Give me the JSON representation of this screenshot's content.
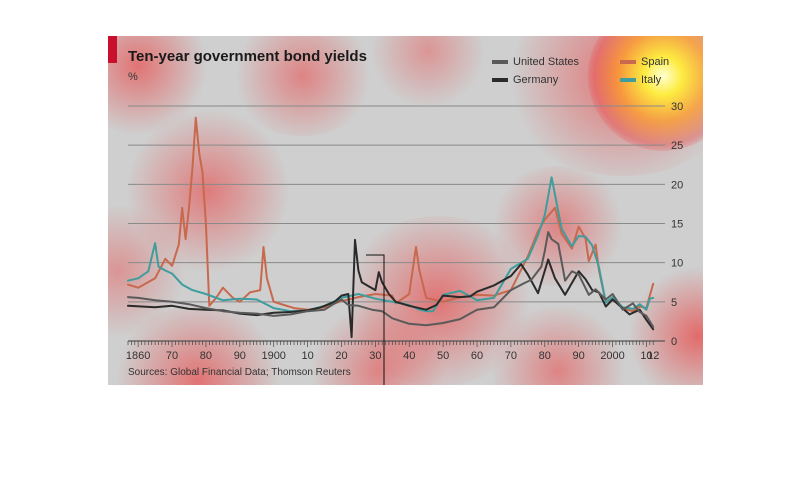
{
  "colors": {
    "panel": "#cfcfcf",
    "accent": "#c8102e",
    "united_states": "#5a5a5a",
    "germany": "#2a2a2a",
    "spain": "#c8684d",
    "italy": "#3e9d9d"
  },
  "chart_data": {
    "type": "line",
    "title": "Ten-year government bond yields",
    "ylabel": "%",
    "xlim": [
      1857,
      2014
    ],
    "ylim": [
      0,
      30
    ],
    "y_ticks": [
      0,
      5,
      10,
      15,
      20,
      25,
      30
    ],
    "x_ticks": [
      {
        "value": 1860,
        "label": "1860"
      },
      {
        "value": 1870,
        "label": "70"
      },
      {
        "value": 1880,
        "label": "80"
      },
      {
        "value": 1890,
        "label": "90"
      },
      {
        "value": 1900,
        "label": "1900"
      },
      {
        "value": 1910,
        "label": "10"
      },
      {
        "value": 1920,
        "label": "20"
      },
      {
        "value": 1930,
        "label": "30"
      },
      {
        "value": 1940,
        "label": "40"
      },
      {
        "value": 1950,
        "label": "50"
      },
      {
        "value": 1960,
        "label": "60"
      },
      {
        "value": 1970,
        "label": "70"
      },
      {
        "value": 1980,
        "label": "80"
      },
      {
        "value": 1990,
        "label": "90"
      },
      {
        "value": 2000,
        "label": "2000"
      },
      {
        "value": 2010,
        "label": "10"
      },
      {
        "value": 2012,
        "label": "12"
      }
    ],
    "grid": true,
    "legend_position": "top-right",
    "source": "Sources: Global Financial Data; Thomson Reuters",
    "series": [
      {
        "name": "United States",
        "color": "#5a5a5a",
        "points": [
          [
            1857,
            5.6
          ],
          [
            1860,
            5.5
          ],
          [
            1865,
            5.2
          ],
          [
            1870,
            5.0
          ],
          [
            1875,
            4.7
          ],
          [
            1880,
            4.2
          ],
          [
            1885,
            3.8
          ],
          [
            1890,
            3.6
          ],
          [
            1895,
            3.5
          ],
          [
            1900,
            3.2
          ],
          [
            1905,
            3.4
          ],
          [
            1910,
            3.8
          ],
          [
            1915,
            4.0
          ],
          [
            1918,
            4.8
          ],
          [
            1920,
            5.3
          ],
          [
            1922,
            4.6
          ],
          [
            1925,
            4.5
          ],
          [
            1929,
            4.0
          ],
          [
            1932,
            3.8
          ],
          [
            1935,
            2.9
          ],
          [
            1940,
            2.2
          ],
          [
            1945,
            2.0
          ],
          [
            1950,
            2.3
          ],
          [
            1955,
            2.8
          ],
          [
            1960,
            4.0
          ],
          [
            1965,
            4.3
          ],
          [
            1970,
            6.5
          ],
          [
            1974,
            7.4
          ],
          [
            1976,
            7.8
          ],
          [
            1979,
            9.5
          ],
          [
            1980,
            11.5
          ],
          [
            1981,
            13.9
          ],
          [
            1982,
            13.0
          ],
          [
            1984,
            12.4
          ],
          [
            1986,
            7.7
          ],
          [
            1988,
            8.9
          ],
          [
            1990,
            8.5
          ],
          [
            1993,
            5.9
          ],
          [
            1995,
            6.6
          ],
          [
            1998,
            5.3
          ],
          [
            2000,
            6.0
          ],
          [
            2003,
            4.0
          ],
          [
            2006,
            4.8
          ],
          [
            2008,
            3.7
          ],
          [
            2010,
            3.2
          ],
          [
            2012,
            1.8
          ]
        ]
      },
      {
        "name": "Germany",
        "color": "#2a2a2a",
        "points": [
          [
            1857,
            4.5
          ],
          [
            1865,
            4.3
          ],
          [
            1870,
            4.5
          ],
          [
            1875,
            4.1
          ],
          [
            1880,
            4.0
          ],
          [
            1885,
            3.9
          ],
          [
            1890,
            3.5
          ],
          [
            1895,
            3.3
          ],
          [
            1900,
            3.6
          ],
          [
            1905,
            3.7
          ],
          [
            1910,
            3.9
          ],
          [
            1914,
            4.3
          ],
          [
            1918,
            5.0
          ],
          [
            1920,
            5.8
          ],
          [
            1922,
            6.0
          ],
          [
            1923,
            0.5
          ],
          [
            1924,
            12.9
          ],
          [
            1925,
            9.0
          ],
          [
            1926,
            7.5
          ],
          [
            1928,
            7.0
          ],
          [
            1930,
            6.5
          ],
          [
            1931,
            8.8
          ],
          [
            1932,
            7.5
          ],
          [
            1934,
            6.0
          ],
          [
            1936,
            5.0
          ],
          [
            1940,
            4.5
          ],
          [
            1945,
            4.0
          ],
          [
            1948,
            4.6
          ],
          [
            1950,
            5.8
          ],
          [
            1955,
            5.6
          ],
          [
            1958,
            5.7
          ],
          [
            1960,
            6.3
          ],
          [
            1965,
            7.1
          ],
          [
            1970,
            8.3
          ],
          [
            1973,
            9.8
          ],
          [
            1975,
            8.5
          ],
          [
            1978,
            6.1
          ],
          [
            1981,
            10.4
          ],
          [
            1983,
            8.0
          ],
          [
            1986,
            5.9
          ],
          [
            1990,
            8.9
          ],
          [
            1992,
            7.9
          ],
          [
            1994,
            6.5
          ],
          [
            1996,
            6.2
          ],
          [
            1998,
            4.4
          ],
          [
            2000,
            5.3
          ],
          [
            2005,
            3.4
          ],
          [
            2008,
            4.0
          ],
          [
            2010,
            2.7
          ],
          [
            2012,
            1.5
          ]
        ]
      },
      {
        "name": "Spain",
        "color": "#c8684d",
        "points": [
          [
            1857,
            7.2
          ],
          [
            1860,
            6.8
          ],
          [
            1865,
            8.0
          ],
          [
            1868,
            10.5
          ],
          [
            1870,
            9.6
          ],
          [
            1872,
            12.3
          ],
          [
            1873,
            17.0
          ],
          [
            1874,
            13.0
          ],
          [
            1875,
            17.0
          ],
          [
            1876,
            22.0
          ],
          [
            1877,
            28.5
          ],
          [
            1878,
            24.0
          ],
          [
            1879,
            21.5
          ],
          [
            1880,
            15.0
          ],
          [
            1881,
            4.5
          ],
          [
            1883,
            5.5
          ],
          [
            1885,
            6.8
          ],
          [
            1888,
            5.5
          ],
          [
            1890,
            5.0
          ],
          [
            1893,
            6.2
          ],
          [
            1896,
            6.5
          ],
          [
            1897,
            12.0
          ],
          [
            1898,
            8.0
          ],
          [
            1900,
            5.0
          ],
          [
            1903,
            4.6
          ],
          [
            1906,
            4.2
          ],
          [
            1910,
            4.0
          ],
          [
            1915,
            4.3
          ],
          [
            1918,
            4.8
          ],
          [
            1920,
            5.1
          ],
          [
            1925,
            5.6
          ],
          [
            1930,
            6.0
          ],
          [
            1935,
            5.8
          ],
          [
            1936,
            4.8
          ],
          [
            1940,
            6.0
          ],
          [
            1942,
            12.0
          ],
          [
            1943,
            9.0
          ],
          [
            1945,
            5.5
          ],
          [
            1950,
            5.0
          ],
          [
            1955,
            5.6
          ],
          [
            1960,
            5.9
          ],
          [
            1965,
            5.8
          ],
          [
            1970,
            6.5
          ],
          [
            1975,
            10.8
          ],
          [
            1978,
            14.0
          ],
          [
            1980,
            15.5
          ],
          [
            1983,
            17.0
          ],
          [
            1985,
            13.7
          ],
          [
            1988,
            11.8
          ],
          [
            1990,
            14.6
          ],
          [
            1992,
            13.1
          ],
          [
            1993,
            10.2
          ],
          [
            1995,
            12.3
          ],
          [
            1996,
            9.0
          ],
          [
            1998,
            4.9
          ],
          [
            2000,
            5.5
          ],
          [
            2003,
            4.1
          ],
          [
            2006,
            3.8
          ],
          [
            2008,
            4.4
          ],
          [
            2010,
            4.2
          ],
          [
            2011,
            5.8
          ],
          [
            2012,
            7.3
          ]
        ]
      },
      {
        "name": "Italy",
        "color": "#3e9d9d",
        "points": [
          [
            1857,
            7.7
          ],
          [
            1860,
            8.0
          ],
          [
            1863,
            8.9
          ],
          [
            1865,
            12.5
          ],
          [
            1866,
            9.5
          ],
          [
            1868,
            9.0
          ],
          [
            1870,
            8.6
          ],
          [
            1873,
            7.2
          ],
          [
            1876,
            6.5
          ],
          [
            1880,
            6.0
          ],
          [
            1885,
            5.2
          ],
          [
            1890,
            5.4
          ],
          [
            1895,
            5.3
          ],
          [
            1900,
            4.2
          ],
          [
            1905,
            3.8
          ],
          [
            1910,
            3.9
          ],
          [
            1915,
            4.5
          ],
          [
            1920,
            5.5
          ],
          [
            1925,
            6.0
          ],
          [
            1930,
            5.4
          ],
          [
            1935,
            5.0
          ],
          [
            1940,
            4.6
          ],
          [
            1943,
            4.0
          ],
          [
            1945,
            3.8
          ],
          [
            1947,
            3.8
          ],
          [
            1950,
            5.9
          ],
          [
            1955,
            6.4
          ],
          [
            1960,
            5.2
          ],
          [
            1965,
            5.5
          ],
          [
            1970,
            9.2
          ],
          [
            1975,
            10.5
          ],
          [
            1978,
            13.5
          ],
          [
            1980,
            16.1
          ],
          [
            1982,
            20.9
          ],
          [
            1985,
            14.3
          ],
          [
            1988,
            12.1
          ],
          [
            1990,
            13.4
          ],
          [
            1992,
            13.3
          ],
          [
            1994,
            12.2
          ],
          [
            1996,
            9.4
          ],
          [
            1998,
            4.9
          ],
          [
            2000,
            5.6
          ],
          [
            2003,
            4.3
          ],
          [
            2006,
            4.1
          ],
          [
            2008,
            4.7
          ],
          [
            2010,
            4.0
          ],
          [
            2011,
            5.4
          ],
          [
            2012,
            5.5
          ]
        ]
      }
    ]
  }
}
